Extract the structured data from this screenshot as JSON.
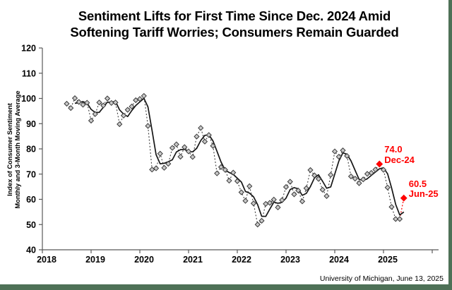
{
  "title": {
    "line1": "Sentiment Lifts for First Time Since Dec. 2024 Amid",
    "line2": "Softening Tariff Worries; Consumers Remain Guarded"
  },
  "y_axis_label": {
    "line1": "Index of Consumer Sentiment",
    "line2": "Monthly and 3-Month Moving Average"
  },
  "source": "University of Michigan, June 13, 2025",
  "annotations": {
    "dec24": {
      "value": "74.0",
      "label": "Dec-24",
      "month": "2024-12"
    },
    "jun25": {
      "value": "60.5",
      "label": "Jun-25",
      "month": "2025-06"
    }
  },
  "colors": {
    "highlight": "#ff0000",
    "monthly_line": "#3f3f3f",
    "marker_fill": "#c9c9c9",
    "marker_stroke": "#3a3a3a",
    "moving_avg_line": "#161616",
    "axis": "#595959",
    "frame_border": "#4e7157"
  },
  "chart_data": {
    "type": "line",
    "title": "Sentiment Lifts for First Time Since Dec. 2024 Amid Softening Tariff Worries; Consumers Remain Guarded",
    "ylabel": "Index of Consumer Sentiment, Monthly and 3-Month Moving Average",
    "xlabel": "",
    "ylim": [
      40,
      120
    ],
    "y_ticks": [
      40,
      50,
      60,
      70,
      80,
      90,
      100,
      110,
      120
    ],
    "x_tick_labels": [
      "2018",
      "2019",
      "2020",
      "2021",
      "2022",
      "2023",
      "2024",
      "2025"
    ],
    "grid": false,
    "legend_position": "none",
    "series": [
      {
        "name": "Monthly Index of Consumer Sentiment",
        "style": "dotted-line-with-diamond-markers",
        "frequency": "monthly",
        "start_month": "2018-07",
        "values": [
          97.9,
          96.2,
          100.1,
          98.6,
          97.5,
          98.3,
          91.2,
          93.8,
          98.4,
          97.2,
          100.0,
          98.2,
          98.4,
          89.8,
          93.2,
          95.5,
          96.8,
          99.3,
          99.8,
          101.0,
          89.1,
          71.8,
          72.3,
          78.1,
          72.5,
          74.1,
          80.4,
          81.8,
          76.9,
          80.7,
          79.0,
          76.8,
          84.9,
          88.3,
          82.9,
          85.5,
          81.2,
          70.3,
          72.8,
          71.7,
          67.4,
          70.6,
          67.2,
          62.8,
          59.4,
          65.2,
          58.4,
          50.0,
          51.5,
          58.2,
          58.6,
          59.9,
          56.8,
          59.7,
          64.9,
          67.0,
          62.0,
          63.5,
          59.2,
          64.4,
          71.6,
          69.5,
          68.1,
          63.8,
          61.3,
          69.7,
          79.0,
          76.9,
          79.4,
          77.2,
          69.1,
          68.2,
          66.4,
          67.9,
          70.1,
          70.5,
          71.8,
          74.0,
          71.7,
          64.7,
          57.0,
          52.2,
          52.2,
          60.5
        ]
      },
      {
        "name": "3-Month Moving Average",
        "style": "solid-line",
        "derived_from": "Monthly Index of Consumer Sentiment",
        "window": 3
      }
    ],
    "highlights": [
      {
        "month": "2024-12",
        "value": 74.0,
        "label": "Dec-24"
      },
      {
        "month": "2025-06",
        "value": 60.5,
        "label": "Jun-25"
      }
    ]
  }
}
